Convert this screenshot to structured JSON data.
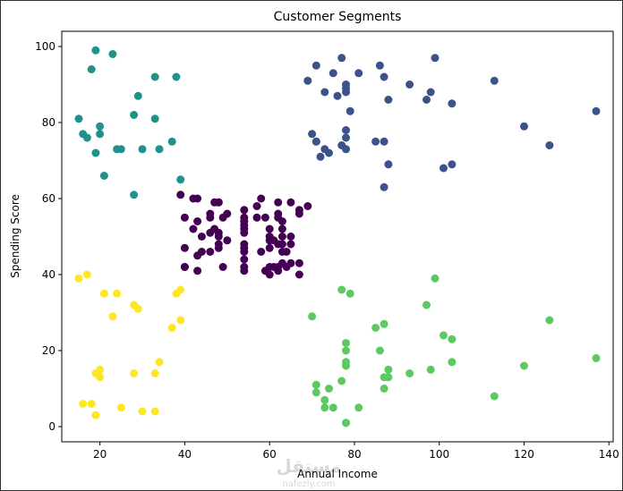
{
  "chart_data": {
    "type": "scatter",
    "title": "Customer Segments",
    "xlabel": "Annual Income",
    "ylabel": "Spending Score",
    "xlim": [
      11,
      141
    ],
    "ylim": [
      -4,
      104
    ],
    "xticks": [
      20,
      40,
      60,
      80,
      100,
      120,
      140
    ],
    "yticks": [
      0,
      20,
      40,
      60,
      80,
      100
    ],
    "grid": false,
    "series": [
      {
        "color": "#440154",
        "points": [
          [
            39,
            61
          ],
          [
            40,
            55
          ],
          [
            40,
            47
          ],
          [
            40,
            42
          ],
          [
            40,
            42
          ],
          [
            42,
            52
          ],
          [
            42,
            60
          ],
          [
            43,
            54
          ],
          [
            43,
            60
          ],
          [
            43,
            45
          ],
          [
            43,
            41
          ],
          [
            44,
            50
          ],
          [
            44,
            46
          ],
          [
            46,
            51
          ],
          [
            46,
            46
          ],
          [
            46,
            56
          ],
          [
            46,
            55
          ],
          [
            47,
            52
          ],
          [
            47,
            59
          ],
          [
            48,
            51
          ],
          [
            48,
            59
          ],
          [
            48,
            50
          ],
          [
            48,
            48
          ],
          [
            48,
            59
          ],
          [
            48,
            47
          ],
          [
            49,
            55
          ],
          [
            49,
            42
          ],
          [
            50,
            49
          ],
          [
            50,
            56
          ],
          [
            54,
            47
          ],
          [
            54,
            54
          ],
          [
            54,
            53
          ],
          [
            54,
            48
          ],
          [
            54,
            52
          ],
          [
            54,
            42
          ],
          [
            54,
            51
          ],
          [
            54,
            55
          ],
          [
            54,
            41
          ],
          [
            54,
            44
          ],
          [
            54,
            57
          ],
          [
            54,
            46
          ],
          [
            57,
            58
          ],
          [
            57,
            55
          ],
          [
            58,
            60
          ],
          [
            58,
            46
          ],
          [
            59,
            55
          ],
          [
            59,
            41
          ],
          [
            60,
            49
          ],
          [
            60,
            40
          ],
          [
            60,
            42
          ],
          [
            60,
            52
          ],
          [
            60,
            47
          ],
          [
            60,
            50
          ],
          [
            61,
            42
          ],
          [
            61,
            49
          ],
          [
            62,
            41
          ],
          [
            62,
            48
          ],
          [
            62,
            59
          ],
          [
            62,
            55
          ],
          [
            62,
            56
          ],
          [
            62,
            42
          ],
          [
            63,
            50
          ],
          [
            63,
            46
          ],
          [
            63,
            43
          ],
          [
            63,
            48
          ],
          [
            63,
            52
          ],
          [
            63,
            54
          ],
          [
            64,
            42
          ],
          [
            64,
            46
          ],
          [
            65,
            48
          ],
          [
            65,
            50
          ],
          [
            65,
            43
          ],
          [
            65,
            59
          ],
          [
            67,
            43
          ],
          [
            67,
            57
          ],
          [
            67,
            56
          ],
          [
            67,
            40
          ],
          [
            69,
            58
          ]
        ]
      },
      {
        "color": "#3b528b",
        "points": [
          [
            69,
            91
          ],
          [
            70,
            77
          ],
          [
            71,
            95
          ],
          [
            71,
            75
          ],
          [
            71,
            75
          ],
          [
            72,
            71
          ],
          [
            73,
            88
          ],
          [
            73,
            73
          ],
          [
            74,
            72
          ],
          [
            75,
            93
          ],
          [
            76,
            87
          ],
          [
            77,
            97
          ],
          [
            77,
            74
          ],
          [
            78,
            90
          ],
          [
            78,
            88
          ],
          [
            78,
            76
          ],
          [
            78,
            89
          ],
          [
            78,
            78
          ],
          [
            78,
            73
          ],
          [
            79,
            83
          ],
          [
            81,
            93
          ],
          [
            85,
            75
          ],
          [
            86,
            95
          ],
          [
            87,
            63
          ],
          [
            87,
            75
          ],
          [
            87,
            92
          ],
          [
            88,
            86
          ],
          [
            88,
            69
          ],
          [
            93,
            90
          ],
          [
            97,
            86
          ],
          [
            98,
            88
          ],
          [
            99,
            97
          ],
          [
            101,
            68
          ],
          [
            103,
            85
          ],
          [
            103,
            69
          ],
          [
            113,
            91
          ],
          [
            120,
            79
          ],
          [
            126,
            74
          ],
          [
            137,
            83
          ]
        ]
      },
      {
        "color": "#21918c",
        "points": [
          [
            15,
            81
          ],
          [
            16,
            77
          ],
          [
            17,
            76
          ],
          [
            18,
            94
          ],
          [
            19,
            72
          ],
          [
            19,
            99
          ],
          [
            20,
            77
          ],
          [
            20,
            79
          ],
          [
            21,
            66
          ],
          [
            23,
            98
          ],
          [
            24,
            73
          ],
          [
            25,
            73
          ],
          [
            28,
            82
          ],
          [
            28,
            61
          ],
          [
            29,
            87
          ],
          [
            30,
            73
          ],
          [
            33,
            92
          ],
          [
            33,
            81
          ],
          [
            34,
            73
          ],
          [
            37,
            75
          ],
          [
            38,
            92
          ],
          [
            39,
            65
          ]
        ]
      },
      {
        "color": "#5ec962",
        "points": [
          [
            70,
            29
          ],
          [
            71,
            11
          ],
          [
            71,
            9
          ],
          [
            73,
            5
          ],
          [
            73,
            7
          ],
          [
            74,
            10
          ],
          [
            75,
            5
          ],
          [
            77,
            12
          ],
          [
            77,
            36
          ],
          [
            78,
            22
          ],
          [
            78,
            17
          ],
          [
            78,
            20
          ],
          [
            78,
            16
          ],
          [
            78,
            1
          ],
          [
            78,
            1
          ],
          [
            79,
            35
          ],
          [
            81,
            5
          ],
          [
            85,
            26
          ],
          [
            86,
            20
          ],
          [
            87,
            27
          ],
          [
            87,
            13
          ],
          [
            87,
            10
          ],
          [
            88,
            13
          ],
          [
            88,
            15
          ],
          [
            93,
            14
          ],
          [
            97,
            32
          ],
          [
            98,
            15
          ],
          [
            99,
            39
          ],
          [
            101,
            24
          ],
          [
            103,
            17
          ],
          [
            103,
            23
          ],
          [
            113,
            8
          ],
          [
            120,
            16
          ],
          [
            126,
            28
          ],
          [
            137,
            18
          ]
        ]
      },
      {
        "color": "#fde725",
        "points": [
          [
            15,
            39
          ],
          [
            16,
            6
          ],
          [
            17,
            40
          ],
          [
            18,
            6
          ],
          [
            19,
            3
          ],
          [
            19,
            14
          ],
          [
            20,
            15
          ],
          [
            20,
            13
          ],
          [
            21,
            35
          ],
          [
            23,
            29
          ],
          [
            24,
            35
          ],
          [
            25,
            5
          ],
          [
            28,
            14
          ],
          [
            28,
            32
          ],
          [
            29,
            31
          ],
          [
            30,
            4
          ],
          [
            33,
            4
          ],
          [
            33,
            14
          ],
          [
            34,
            17
          ],
          [
            37,
            26
          ],
          [
            38,
            35
          ],
          [
            39,
            36
          ],
          [
            39,
            28
          ]
        ]
      }
    ]
  },
  "watermark": {
    "text": "مستقل",
    "sub": "nafezly.com"
  }
}
